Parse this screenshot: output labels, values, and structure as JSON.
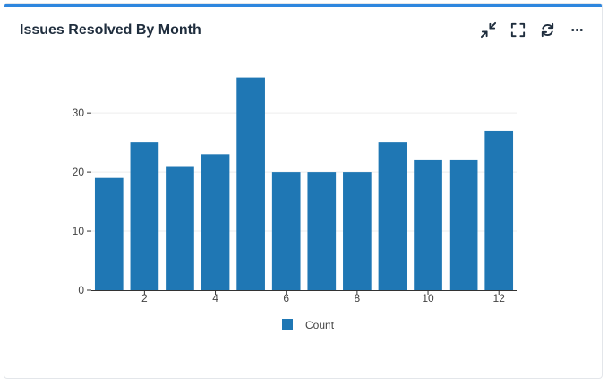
{
  "card": {
    "title": "Issues Resolved By Month",
    "accent_color": "#2e86de"
  },
  "toolbar": {
    "icons": [
      "collapse-icon",
      "expand-icon",
      "refresh-icon",
      "more-icon"
    ]
  },
  "chart_data": {
    "type": "bar",
    "categories": [
      1,
      2,
      3,
      4,
      5,
      6,
      7,
      8,
      9,
      10,
      11,
      12
    ],
    "series": [
      {
        "name": "Count",
        "color": "#1f77b4",
        "values": [
          19,
          25,
          21,
          23,
          36,
          20,
          20,
          20,
          25,
          22,
          22,
          27
        ]
      }
    ],
    "xlim": [
      0.5,
      12.5
    ],
    "ylim": [
      0,
      37
    ],
    "xticks": [
      2,
      4,
      6,
      8,
      10,
      12
    ],
    "yticks": [
      0,
      10,
      20,
      30
    ],
    "grid": true,
    "legend_position": "bottom-center",
    "title": "",
    "xlabel": "",
    "ylabel": ""
  }
}
